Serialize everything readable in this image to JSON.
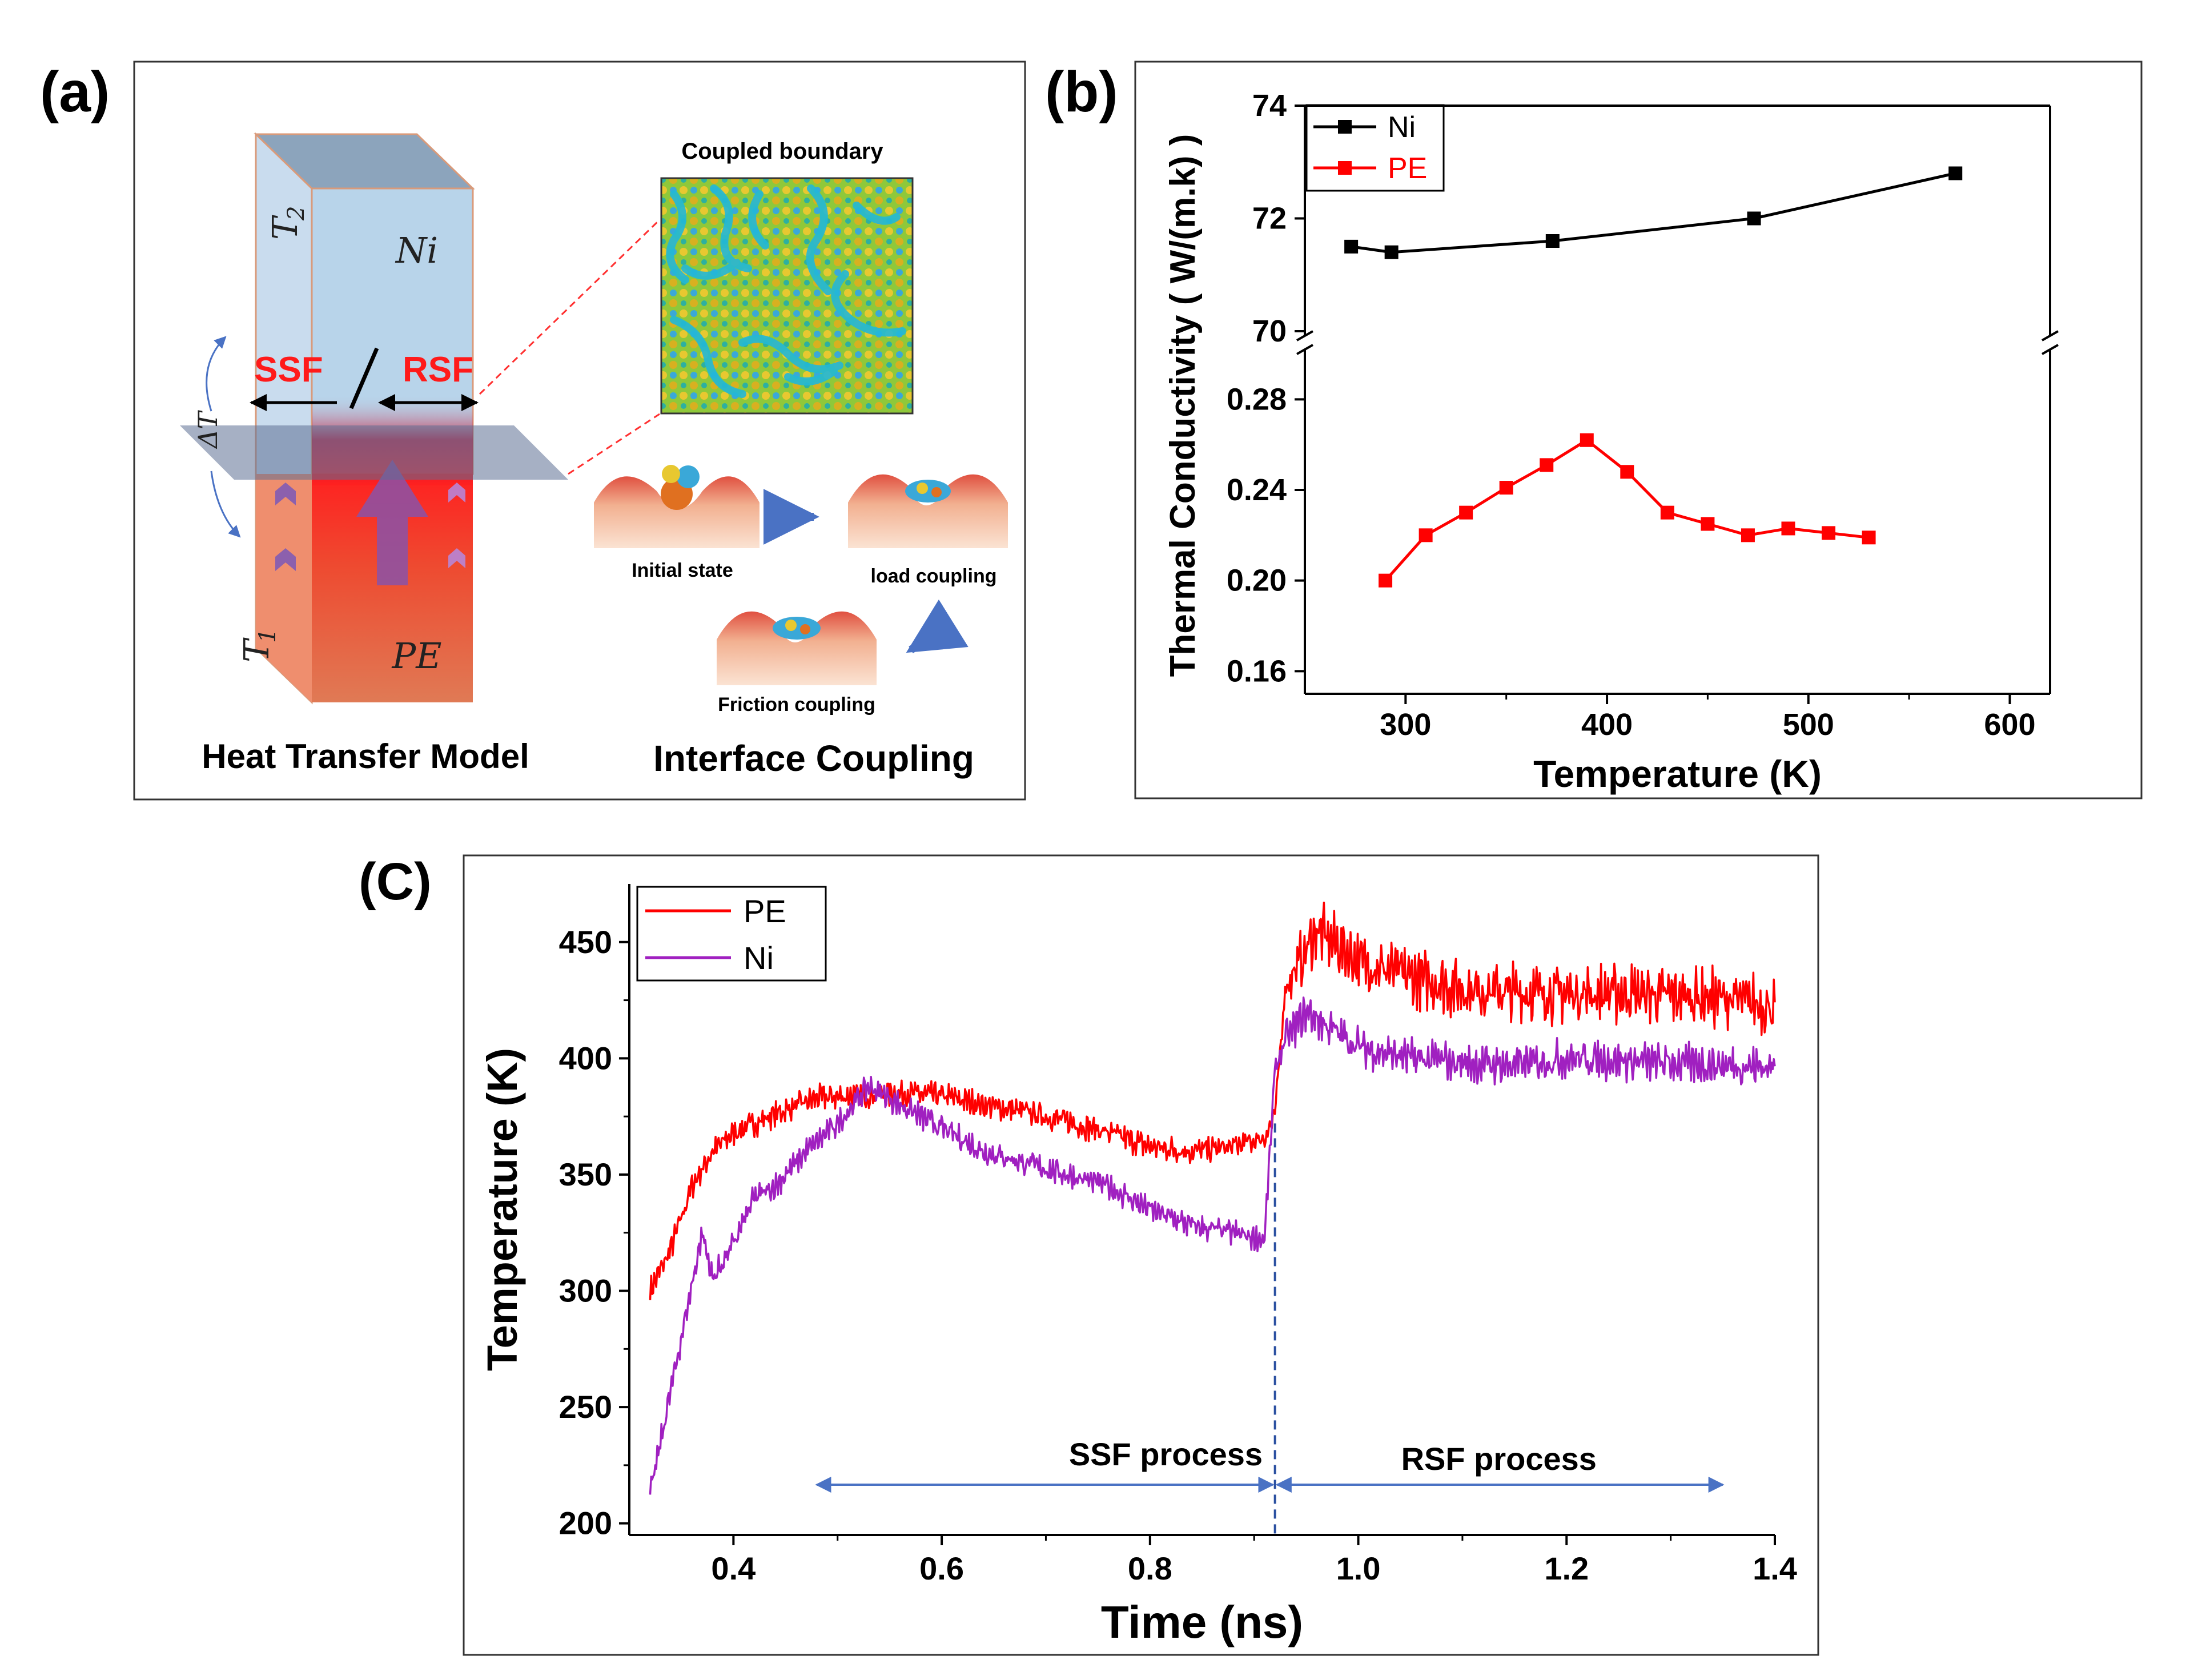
{
  "panel_a": {
    "label": "(a)",
    "ni": "Ni",
    "pe": "PE",
    "t2": "T",
    "t2_sub": "2",
    "t1": "T",
    "t1_sub": "1",
    "delta_t": "ΔT",
    "ssf": "SSF",
    "slash": "/",
    "rsf": "RSF",
    "coupled_boundary": "Coupled boundary",
    "initial_state": "Initial state",
    "load_coupling": "load coupling",
    "friction_coupling": "Friction coupling",
    "heat_transfer_model": "Heat Transfer Model",
    "interface_coupling": "Interface Coupling",
    "colors": {
      "ni_block": "#b8d4ea",
      "pe_block": "#e2744f",
      "ssf_text": "#ff1a1a",
      "arrow_blue": "#4a72c4"
    }
  },
  "panel_b": {
    "label": "(b)",
    "chart_data": {
      "type": "line",
      "title": "",
      "xlabel": "Temperature (K)",
      "ylabel": "Thermal Conductivity ( W/(m.k) )",
      "xlim": [
        250,
        620
      ],
      "xticks": [
        "300",
        "400",
        "500",
        "600"
      ],
      "ylim_upper": [
        70,
        74
      ],
      "yticks_upper": [
        "70",
        "72",
        "74"
      ],
      "ylim_lower": [
        0.15,
        0.3
      ],
      "yticks_lower": [
        "0.16",
        "0.20",
        "0.24",
        "0.28"
      ],
      "legend": [
        "Ni",
        "PE"
      ],
      "series": [
        {
          "name": "Ni",
          "color": "#000000",
          "x": [
            273,
            293,
            373,
            473,
            573
          ],
          "y": [
            71.5,
            71.4,
            71.6,
            72.0,
            72.8
          ]
        },
        {
          "name": "PE",
          "color": "#ff0000",
          "x": [
            290,
            310,
            330,
            350,
            370,
            390,
            410,
            430,
            450,
            470,
            490,
            510,
            530
          ],
          "y": [
            0.2,
            0.22,
            0.23,
            0.241,
            0.251,
            0.262,
            0.248,
            0.23,
            0.225,
            0.22,
            0.223,
            0.221,
            0.219
          ]
        }
      ]
    }
  },
  "panel_c": {
    "label": "(C)",
    "ssf_process": "SSF process",
    "rsf_process": "RSF process",
    "chart_data": {
      "type": "line",
      "title": "",
      "xlabel": "Time (ns)",
      "ylabel": "Temperature (K)",
      "xlim": [
        0.3,
        1.4
      ],
      "ylim": [
        195,
        475
      ],
      "xticks": [
        "0.4",
        "0.6",
        "0.8",
        "1.0",
        "1.2",
        "1.4"
      ],
      "yticks": [
        "200",
        "250",
        "300",
        "350",
        "400",
        "450"
      ],
      "legend": [
        "PE",
        "Ni"
      ],
      "transition_x": 0.92,
      "series": [
        {
          "name": "PE",
          "color": "#ff0000",
          "x": [
            0.32,
            0.34,
            0.36,
            0.38,
            0.4,
            0.44,
            0.48,
            0.52,
            0.56,
            0.6,
            0.64,
            0.68,
            0.72,
            0.76,
            0.8,
            0.84,
            0.88,
            0.91,
            0.92,
            0.93,
            0.94,
            0.96,
            1.0,
            1.05,
            1.1,
            1.15,
            1.2,
            1.25,
            1.3,
            1.35,
            1.4
          ],
          "y": [
            300,
            318,
            345,
            360,
            368,
            376,
            383,
            384,
            385,
            384,
            380,
            377,
            373,
            368,
            362,
            360,
            362,
            366,
            375,
            432,
            438,
            455,
            442,
            435,
            430,
            428,
            428,
            428,
            427,
            426,
            422
          ]
        },
        {
          "name": "Ni",
          "color": "#a020c0",
          "x": [
            0.32,
            0.33,
            0.35,
            0.37,
            0.38,
            0.4,
            0.42,
            0.44,
            0.47,
            0.5,
            0.53,
            0.56,
            0.6,
            0.64,
            0.68,
            0.72,
            0.76,
            0.8,
            0.84,
            0.88,
            0.91,
            0.92,
            0.93,
            0.95,
            0.97,
            1.0,
            1.05,
            1.1,
            1.15,
            1.2,
            1.25,
            1.3,
            1.35,
            1.4
          ],
          "y": [
            212,
            235,
            280,
            325,
            305,
            320,
            340,
            345,
            360,
            372,
            388,
            380,
            370,
            360,
            355,
            350,
            345,
            335,
            328,
            325,
            322,
            395,
            408,
            420,
            414,
            405,
            400,
            398,
            397,
            400,
            399,
            398,
            397,
            396
          ]
        }
      ]
    }
  }
}
